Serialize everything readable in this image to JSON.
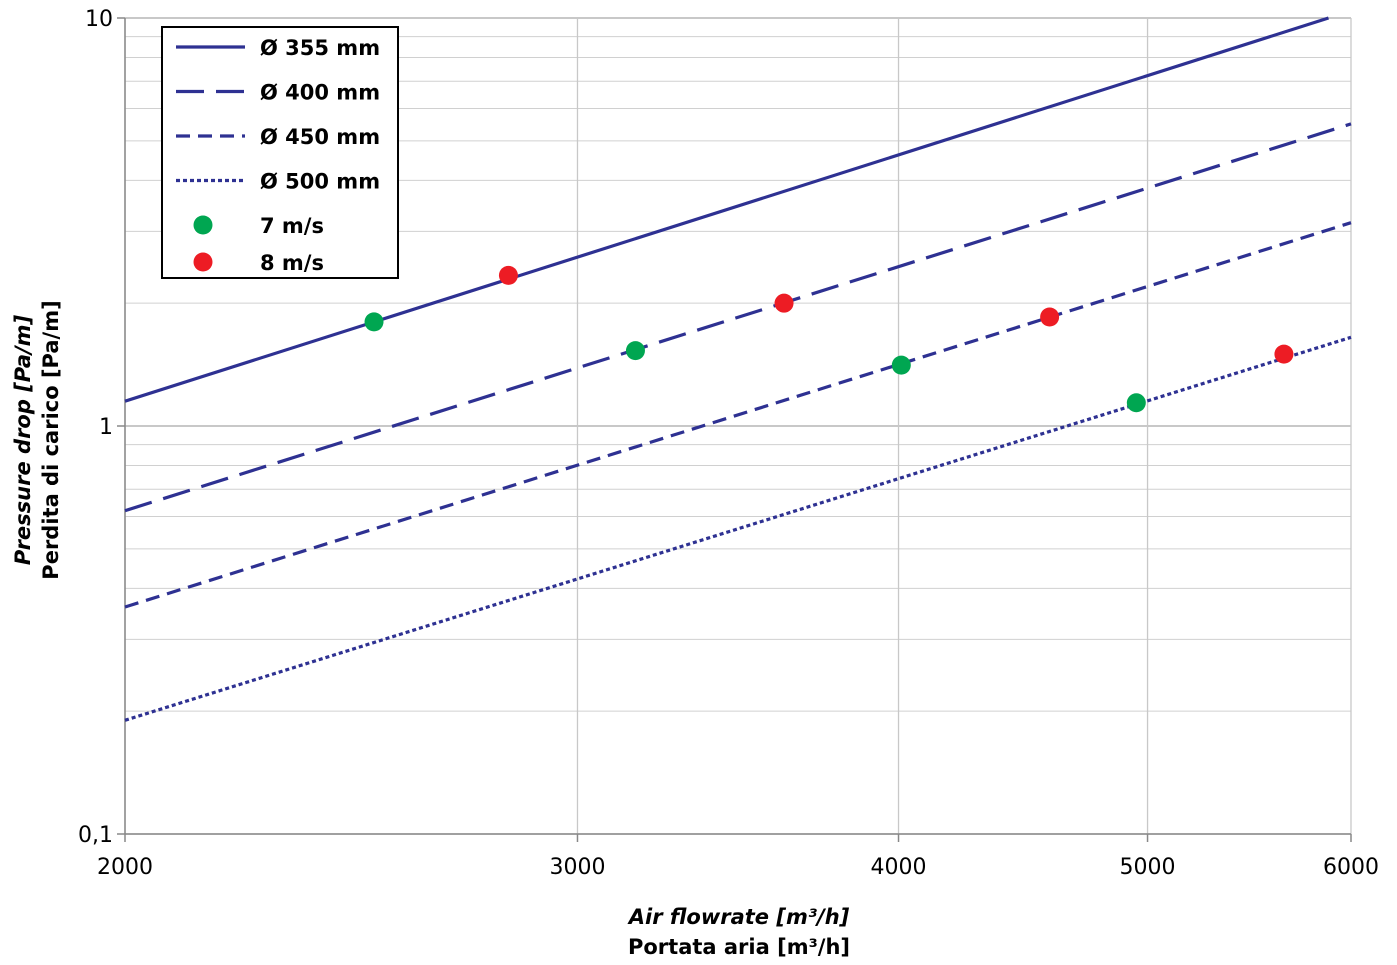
{
  "chart_data": {
    "type": "line",
    "x_scale": "log",
    "y_scale": "log",
    "xlim": [
      2000,
      6000
    ],
    "ylim": [
      0.1,
      10
    ],
    "x_ticks": [
      2000,
      3000,
      4000,
      5000,
      6000
    ],
    "x_tick_labels": [
      "2000",
      "3000",
      "4000",
      "5000",
      "6000"
    ],
    "y_ticks": [
      0.1,
      1,
      10
    ],
    "y_tick_labels": [
      "0,1",
      "1",
      "10"
    ],
    "grid": true,
    "xlabel_en": "Air flowrate [m³/h]",
    "xlabel_it": "Portata aria [m³/h]",
    "ylabel_en": "Pressure drop [Pa/m]",
    "ylabel_it": "Perdita di carico [Pa/m]",
    "legend_position": "top-left",
    "line_color": "#2e3192",
    "series": [
      {
        "name": "Ø 355 mm",
        "style": "solid",
        "x": [
          2000,
          5880
        ],
        "y": [
          1.15,
          10.0
        ]
      },
      {
        "name": "Ø 400 mm",
        "style": "long-dash",
        "x": [
          2000,
          6000
        ],
        "y": [
          0.62,
          5.5
        ]
      },
      {
        "name": "Ø 450 mm",
        "style": "dash",
        "x": [
          2000,
          6000
        ],
        "y": [
          0.36,
          3.15
        ]
      },
      {
        "name": "Ø 500 mm",
        "style": "dot",
        "x": [
          2000,
          6000
        ],
        "y": [
          0.19,
          1.65
        ]
      }
    ],
    "points": [
      {
        "name": "7 m/s",
        "color": "#00a651",
        "x": [
          2500,
          3160,
          4010,
          4950
        ],
        "y": [
          1.8,
          1.53,
          1.41,
          1.14
        ]
      },
      {
        "name": "8 m/s",
        "color": "#ed1c24",
        "x": [
          2820,
          3610,
          4580,
          5650
        ],
        "y": [
          2.34,
          2.0,
          1.85,
          1.5
        ]
      }
    ]
  }
}
